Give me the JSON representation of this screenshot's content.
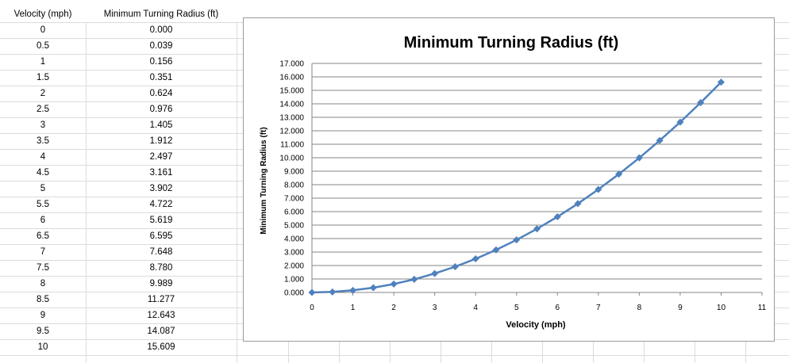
{
  "sheet": {
    "headers": [
      "Velocity (mph)",
      "Minimum Turning Radius (ft)"
    ],
    "rows": [
      [
        "0",
        "0.000"
      ],
      [
        "0.5",
        "0.039"
      ],
      [
        "1",
        "0.156"
      ],
      [
        "1.5",
        "0.351"
      ],
      [
        "2",
        "0.624"
      ],
      [
        "2.5",
        "0.976"
      ],
      [
        "3",
        "1.405"
      ],
      [
        "3.5",
        "1.912"
      ],
      [
        "4",
        "2.497"
      ],
      [
        "4.5",
        "3.161"
      ],
      [
        "5",
        "3.902"
      ],
      [
        "5.5",
        "4.722"
      ],
      [
        "6",
        "5.619"
      ],
      [
        "6.5",
        "6.595"
      ],
      [
        "7",
        "7.648"
      ],
      [
        "7.5",
        "8.780"
      ],
      [
        "8",
        "9.989"
      ],
      [
        "8.5",
        "11.277"
      ],
      [
        "9",
        "12.643"
      ],
      [
        "9.5",
        "14.087"
      ],
      [
        "10",
        "15.609"
      ]
    ]
  },
  "chart_data": {
    "type": "line",
    "title": "Minimum Turning Radius (ft)",
    "xlabel": "Velocity (mph)",
    "ylabel": "Minimum Turning Radius (ft)",
    "xlim": [
      0,
      11
    ],
    "ylim": [
      0,
      17
    ],
    "x_ticks": [
      "0",
      "1",
      "2",
      "3",
      "4",
      "5",
      "6",
      "7",
      "8",
      "9",
      "10",
      "11"
    ],
    "y_ticks": [
      "0.000",
      "1.000",
      "2.000",
      "3.000",
      "4.000",
      "5.000",
      "6.000",
      "7.000",
      "8.000",
      "9.000",
      "10.000",
      "11.000",
      "12.000",
      "13.000",
      "14.000",
      "15.000",
      "16.000",
      "17.000"
    ],
    "grid": true,
    "marker": "diamond",
    "color": "#4f81bd",
    "series": [
      {
        "x": [
          0,
          0.5,
          1,
          1.5,
          2,
          2.5,
          3,
          3.5,
          4,
          4.5,
          5,
          5.5,
          6,
          6.5,
          7,
          7.5,
          8,
          8.5,
          9,
          9.5,
          10
        ],
        "y": [
          0.0,
          0.039,
          0.156,
          0.351,
          0.624,
          0.976,
          1.405,
          1.912,
          2.497,
          3.161,
          3.902,
          4.722,
          5.619,
          6.595,
          7.648,
          8.78,
          9.989,
          11.277,
          12.643,
          14.087,
          15.609
        ]
      }
    ]
  }
}
